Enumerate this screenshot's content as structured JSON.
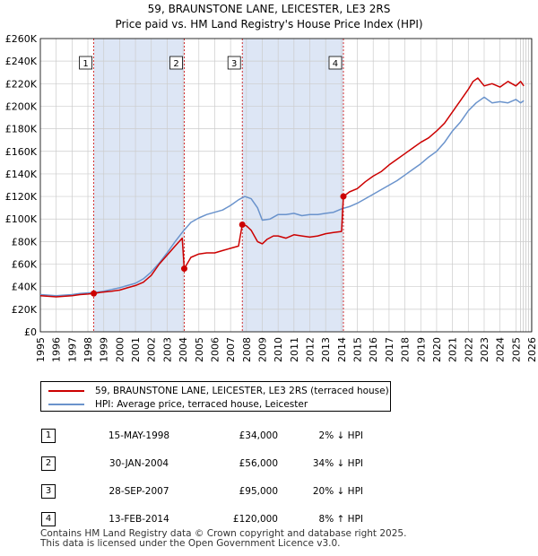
{
  "chart_data": {
    "type": "line",
    "title": "59, BRAUNSTONE LANE, LEICESTER, LE3 2RS",
    "subtitle": "Price paid vs. HM Land Registry's House Price Index (HPI)",
    "xlim": [
      1995,
      2026
    ],
    "ylim": [
      0,
      260000
    ],
    "x_ticks": [
      "1995",
      "1996",
      "1997",
      "1998",
      "1999",
      "2000",
      "2001",
      "2002",
      "2003",
      "2004",
      "2005",
      "2006",
      "2007",
      "2008",
      "2009",
      "2010",
      "2011",
      "2012",
      "2013",
      "2014",
      "2015",
      "2016",
      "2017",
      "2018",
      "2019",
      "2020",
      "2021",
      "2022",
      "2023",
      "2024",
      "2025",
      "2026"
    ],
    "y_ticks": [
      {
        "value": 0,
        "label": "£0"
      },
      {
        "value": 20000,
        "label": "£20K"
      },
      {
        "value": 40000,
        "label": "£40K"
      },
      {
        "value": 60000,
        "label": "£60K"
      },
      {
        "value": 80000,
        "label": "£80K"
      },
      {
        "value": 100000,
        "label": "£100K"
      },
      {
        "value": 120000,
        "label": "£120K"
      },
      {
        "value": 140000,
        "label": "£140K"
      },
      {
        "value": 160000,
        "label": "£160K"
      },
      {
        "value": 180000,
        "label": "£180K"
      },
      {
        "value": 200000,
        "label": "£200K"
      },
      {
        "value": 220000,
        "label": "£220K"
      },
      {
        "value": 240000,
        "label": "£240K"
      },
      {
        "value": 260000,
        "label": "£260K"
      }
    ],
    "grid": true,
    "series": [
      {
        "name": "59, BRAUNSTONE LANE, LEICESTER, LE3 2RS (terraced house)",
        "color": "#cc0000",
        "x": [
          1995.0,
          1995.5,
          1996.0,
          1996.5,
          1997.0,
          1997.5,
          1998.0,
          1998.37,
          1998.8,
          1999.5,
          2000.0,
          2000.5,
          2001.0,
          2001.5,
          2002.0,
          2002.5,
          2003.0,
          2003.5,
          2003.95,
          2004.08,
          2004.5,
          2005.0,
          2005.5,
          2006.0,
          2006.5,
          2007.0,
          2007.5,
          2007.74,
          2008.0,
          2008.3,
          2008.7,
          2009.0,
          2009.3,
          2009.7,
          2010.0,
          2010.5,
          2011.0,
          2011.5,
          2012.0,
          2012.5,
          2013.0,
          2013.5,
          2014.0,
          2014.12,
          2014.5,
          2015.0,
          2015.5,
          2016.0,
          2016.5,
          2017.0,
          2017.5,
          2018.0,
          2018.5,
          2019.0,
          2019.5,
          2020.0,
          2020.5,
          2021.0,
          2021.5,
          2022.0,
          2022.3,
          2022.6,
          2023.0,
          2023.5,
          2024.0,
          2024.5,
          2025.0,
          2025.3,
          2025.5
        ],
        "values": [
          32000,
          31500,
          31000,
          31500,
          32000,
          33000,
          33500,
          34000,
          35000,
          36000,
          37000,
          39000,
          41000,
          44000,
          50000,
          60000,
          68000,
          76000,
          83000,
          56000,
          66000,
          69000,
          70000,
          70000,
          72000,
          74000,
          76000,
          95000,
          94000,
          90000,
          80000,
          78000,
          82000,
          85000,
          85000,
          83000,
          86000,
          85000,
          84000,
          85000,
          87000,
          88000,
          89000,
          120000,
          124000,
          127000,
          133000,
          138000,
          142000,
          148000,
          153000,
          158000,
          163000,
          168000,
          172000,
          178000,
          185000,
          195000,
          205000,
          215000,
          222000,
          225000,
          218000,
          220000,
          217000,
          222000,
          218000,
          222000,
          218000
        ]
      },
      {
        "name": "HPI: Average price, terraced house, Leicester",
        "color": "#6a93cc",
        "x": [
          1995.0,
          1995.5,
          1996.0,
          1996.5,
          1997.0,
          1997.5,
          1998.0,
          1998.5,
          1999.0,
          1999.5,
          2000.0,
          2000.5,
          2001.0,
          2001.5,
          2002.0,
          2002.5,
          2003.0,
          2003.5,
          2004.0,
          2004.5,
          2005.0,
          2005.5,
          2006.0,
          2006.5,
          2007.0,
          2007.5,
          2007.9,
          2008.3,
          2008.7,
          2009.0,
          2009.5,
          2010.0,
          2010.5,
          2011.0,
          2011.5,
          2012.0,
          2012.5,
          2013.0,
          2013.5,
          2014.0,
          2014.5,
          2015.0,
          2015.5,
          2016.0,
          2016.5,
          2017.0,
          2017.5,
          2018.0,
          2018.5,
          2019.0,
          2019.5,
          2020.0,
          2020.5,
          2021.0,
          2021.5,
          2022.0,
          2022.5,
          2023.0,
          2023.5,
          2024.0,
          2024.5,
          2025.0,
          2025.3,
          2025.5
        ],
        "values": [
          33000,
          32500,
          32000,
          32500,
          33000,
          34000,
          34500,
          35000,
          36000,
          37500,
          39000,
          41000,
          43000,
          47000,
          53000,
          61000,
          70000,
          80000,
          89000,
          97000,
          101000,
          104000,
          106000,
          108000,
          112000,
          117000,
          120000,
          118000,
          110000,
          99000,
          100000,
          104000,
          104000,
          105000,
          103000,
          104000,
          104000,
          105000,
          106000,
          109000,
          111000,
          114000,
          118000,
          122000,
          126000,
          130000,
          134000,
          139000,
          144000,
          149000,
          155000,
          160000,
          168000,
          178000,
          186000,
          196000,
          203000,
          208000,
          203000,
          204000,
          203000,
          206000,
          203000,
          205000
        ]
      }
    ],
    "sales": [
      {
        "number": "1",
        "x": 1998.37,
        "value": 34000,
        "date": "15-MAY-1998",
        "price": "£34,000",
        "hpi": "2% ↓ HPI"
      },
      {
        "number": "2",
        "x": 2004.08,
        "value": 56000,
        "date": "30-JAN-2004",
        "price": "£56,000",
        "hpi": "34% ↓ HPI"
      },
      {
        "number": "3",
        "x": 2007.74,
        "value": 95000,
        "date": "28-SEP-2007",
        "price": "£95,000",
        "hpi": "20% ↓ HPI"
      },
      {
        "number": "4",
        "x": 2014.12,
        "value": 120000,
        "date": "13-FEB-2014",
        "price": "£120,000",
        "hpi": "8% ↑ HPI"
      }
    ],
    "legend": [
      {
        "label": "59, BRAUNSTONE LANE, LEICESTER, LE3 2RS (terraced house)",
        "color": "#cc0000"
      },
      {
        "label": "HPI: Average price, terraced house, Leicester",
        "color": "#6a93cc"
      }
    ]
  },
  "colors": {
    "sale_band": "#dde6f5",
    "grid": "#cccccc",
    "marker_line": "#cc0000"
  },
  "footer": {
    "line1": "Contains HM Land Registry data © Crown copyright and database right 2025.",
    "line2": "This data is licensed under the Open Government Licence v3.0."
  }
}
